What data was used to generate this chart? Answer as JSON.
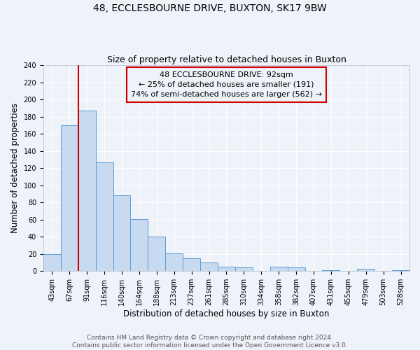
{
  "title": "48, ECCLESBOURNE DRIVE, BUXTON, SK17 9BW",
  "subtitle": "Size of property relative to detached houses in Buxton",
  "xlabel": "Distribution of detached houses by size in Buxton",
  "ylabel": "Number of detached properties",
  "bin_labels": [
    "43sqm",
    "67sqm",
    "91sqm",
    "116sqm",
    "140sqm",
    "164sqm",
    "188sqm",
    "213sqm",
    "237sqm",
    "261sqm",
    "285sqm",
    "310sqm",
    "334sqm",
    "358sqm",
    "382sqm",
    "407sqm",
    "431sqm",
    "455sqm",
    "479sqm",
    "503sqm",
    "528sqm"
  ],
  "bar_heights": [
    20,
    170,
    187,
    127,
    88,
    61,
    40,
    21,
    15,
    10,
    5,
    4,
    0,
    5,
    4,
    0,
    1,
    0,
    3,
    0,
    1
  ],
  "bar_color": "#c8daef",
  "bar_edgecolor": "#5b9bd5",
  "vline_x_index": 2,
  "vline_color": "#cc0000",
  "annotation_lines": [
    "48 ECCLESBOURNE DRIVE: 92sqm",
    "← 25% of detached houses are smaller (191)",
    "74% of semi-detached houses are larger (562) →"
  ],
  "annotation_box_edgecolor": "#cc0000",
  "ylim": [
    0,
    240
  ],
  "yticks": [
    0,
    20,
    40,
    60,
    80,
    100,
    120,
    140,
    160,
    180,
    200,
    220,
    240
  ],
  "footer_lines": [
    "Contains HM Land Registry data © Crown copyright and database right 2024.",
    "Contains public sector information licensed under the Open Government Licence v3.0."
  ],
  "background_color": "#eef2f9",
  "grid_color": "#ffffff",
  "title_fontsize": 10,
  "subtitle_fontsize": 9,
  "axis_label_fontsize": 8.5,
  "tick_fontsize": 7,
  "annotation_fontsize": 8,
  "footer_fontsize": 6.5
}
